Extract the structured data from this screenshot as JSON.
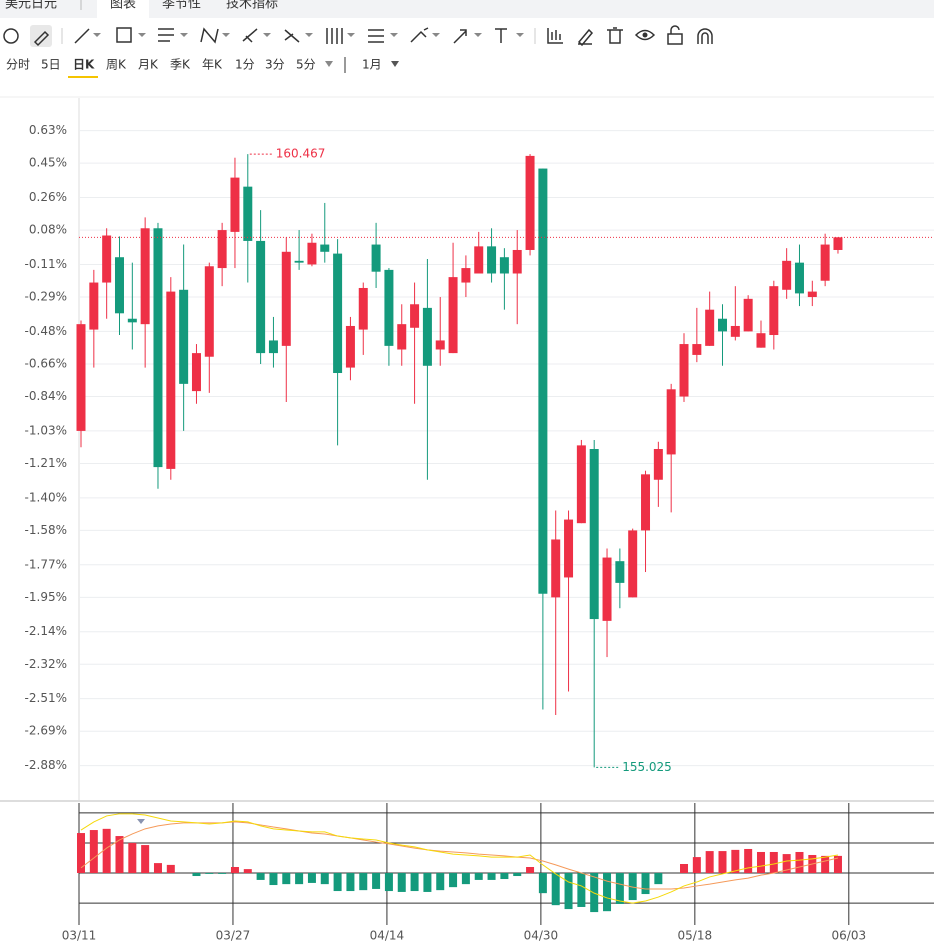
{
  "header": {
    "symbol": "美元日元",
    "tabs": [
      "图表",
      "季节性",
      "技术指标"
    ]
  },
  "periods": [
    "分时",
    "5日",
    "日K",
    "周K",
    "月K",
    "季K",
    "年K",
    "1分",
    "3分",
    "5分"
  ],
  "range": "1月",
  "chart_data": {
    "type": "candlestick",
    "categories": [
      "03/11",
      null,
      null,
      null,
      null,
      null,
      null,
      null,
      null,
      null,
      null,
      null,
      "03/27",
      null,
      null,
      null,
      null,
      null,
      null,
      null,
      null,
      null,
      null,
      null,
      "04/14",
      null,
      null,
      null,
      null,
      null,
      null,
      null,
      null,
      null,
      null,
      null,
      "04/30",
      null,
      null,
      null,
      null,
      null,
      null,
      null,
      null,
      null,
      null,
      null,
      "05/18",
      null,
      null,
      null,
      null,
      null,
      null,
      null,
      null,
      null,
      null,
      null,
      "06/03"
    ],
    "open": [
      -1.03,
      -0.47,
      -0.21,
      -0.07,
      -0.41,
      -0.44,
      0.09,
      -1.24,
      -0.25,
      -0.81,
      -0.62,
      -0.13,
      0.07,
      0.32,
      0.02,
      -0.53,
      -0.56,
      -0.09,
      -0.11,
      0.0,
      -0.05,
      -0.68,
      -0.47,
      0.0,
      -0.14,
      -0.58,
      -0.46,
      -0.35,
      -0.58,
      -0.6,
      -0.21,
      -0.16,
      -0.01,
      -0.07,
      -0.16,
      -0.03,
      0.42,
      -1.95,
      -1.84,
      -1.54,
      -1.13,
      -2.08,
      -1.75,
      -1.95,
      -1.58,
      -1.3,
      -1.16,
      -0.84,
      -0.61,
      -0.56,
      -0.41,
      -0.51,
      -0.48,
      -0.57,
      -0.5,
      -0.25,
      -0.1,
      -0.29,
      -0.2,
      -0.03,
      null
    ],
    "high": [
      -0.42,
      -0.14,
      0.09,
      0.045,
      -0.1,
      0.15,
      0.12,
      -0.18,
      0.0,
      -0.55,
      -0.1,
      0.12,
      0.48,
      0.5,
      0.19,
      -0.4,
      0.04,
      0.08,
      0.06,
      0.23,
      0.03,
      -0.4,
      -0.21,
      0.12,
      -0.13,
      -0.33,
      -0.21,
      -0.08,
      -0.29,
      0.01,
      -0.06,
      0.07,
      0.09,
      -0.02,
      0.08,
      0.5,
      0.42,
      -1.47,
      -1.47,
      -1.08,
      -1.08,
      -1.68,
      -1.68,
      -1.57,
      -1.25,
      -1.09,
      -0.77,
      -0.49,
      -0.35,
      -0.26,
      -0.33,
      -0.23,
      -0.28,
      -0.42,
      -0.2,
      -0.02,
      0.0,
      -0.2,
      0.06,
      0.04,
      null
    ],
    "low": [
      -1.12,
      -0.68,
      -0.41,
      -0.5,
      -0.58,
      -0.68,
      -1.35,
      -1.3,
      -1.03,
      -0.88,
      -0.82,
      -0.23,
      -0.13,
      -0.21,
      -0.66,
      -0.68,
      -0.87,
      -0.14,
      -0.12,
      -0.1,
      -1.11,
      -0.75,
      -0.61,
      -0.24,
      -0.67,
      -0.67,
      -0.88,
      -1.3,
      -0.67,
      -0.6,
      -0.29,
      -0.16,
      -0.21,
      -0.36,
      -0.44,
      -0.06,
      -2.57,
      -2.6,
      -2.47,
      -1.54,
      -2.89,
      -2.28,
      -2.01,
      -1.95,
      -1.81,
      -1.45,
      -1.48,
      -0.87,
      -0.65,
      -0.56,
      -0.67,
      -0.53,
      -0.48,
      -0.57,
      -0.58,
      -0.3,
      -0.34,
      -0.34,
      -0.23,
      -0.05,
      null
    ],
    "close": [
      -0.44,
      -0.21,
      0.05,
      -0.38,
      -0.43,
      0.09,
      -1.23,
      -0.26,
      -0.77,
      -0.6,
      -0.12,
      0.08,
      0.37,
      0.02,
      -0.6,
      -0.6,
      -0.04,
      -0.1,
      0.01,
      -0.04,
      -0.71,
      -0.45,
      -0.24,
      -0.15,
      -0.56,
      -0.44,
      -0.33,
      -0.67,
      -0.53,
      -0.18,
      -0.13,
      -0.01,
      -0.16,
      -0.16,
      -0.03,
      0.49,
      -1.93,
      -1.63,
      -1.52,
      -1.11,
      -2.07,
      -1.73,
      -1.87,
      -1.58,
      -1.27,
      -1.13,
      -0.8,
      -0.55,
      -0.55,
      -0.36,
      -0.48,
      -0.45,
      -0.3,
      -0.49,
      -0.23,
      -0.09,
      -0.27,
      -0.26,
      0.0,
      0.04,
      null
    ],
    "up_color": "#ee3046",
    "down_color": "#149a7c",
    "ylim": [
      -3.07,
      0.81
    ],
    "yticks": [
      {
        "value": 0.63,
        "label": "0.63%"
      },
      {
        "value": 0.45,
        "label": "0.45%"
      },
      {
        "value": 0.26,
        "label": "0.26%"
      },
      {
        "value": 0.08,
        "label": "0.08%"
      },
      {
        "value": -0.11,
        "label": "-0.11%"
      },
      {
        "value": -0.29,
        "label": "-0.29%"
      },
      {
        "value": -0.48,
        "label": "-0.48%"
      },
      {
        "value": -0.66,
        "label": "-0.66%"
      },
      {
        "value": -0.84,
        "label": "-0.84%"
      },
      {
        "value": -1.03,
        "label": "-1.03%"
      },
      {
        "value": -1.21,
        "label": "-1.21%"
      },
      {
        "value": -1.4,
        "label": "-1.40%"
      },
      {
        "value": -1.58,
        "label": "-1.58%"
      },
      {
        "value": -1.77,
        "label": "-1.77%"
      },
      {
        "value": -1.95,
        "label": "-1.95%"
      },
      {
        "value": -2.14,
        "label": "-2.14%"
      },
      {
        "value": -2.32,
        "label": "-2.32%"
      },
      {
        "value": -2.51,
        "label": "-2.51%"
      },
      {
        "value": -2.69,
        "label": "-2.69%"
      },
      {
        "value": -2.88,
        "label": "-2.88%"
      }
    ],
    "grid": true,
    "max_label": "160.467",
    "min_label": "155.025",
    "macd": {
      "ylim": [
        -1.73,
        2.33
      ],
      "grid": [
        2,
        1,
        0,
        -1
      ],
      "histogram": [
        1.33,
        1.43,
        1.47,
        1.23,
        1.0,
        0.93,
        0.33,
        0.27,
        0,
        -0.1,
        -0.03,
        -0.03,
        0.2,
        0.13,
        -0.23,
        -0.4,
        -0.37,
        -0.37,
        -0.33,
        -0.37,
        -0.6,
        -0.6,
        -0.57,
        -0.53,
        -0.6,
        -0.63,
        -0.6,
        -0.63,
        -0.57,
        -0.47,
        -0.37,
        -0.23,
        -0.23,
        -0.2,
        -0.1,
        0.2,
        -0.67,
        -1.07,
        -1.2,
        -1.13,
        -1.3,
        -1.27,
        -1.03,
        -0.9,
        -0.7,
        -0.37,
        0,
        0.3,
        0.53,
        0.73,
        0.73,
        0.77,
        0.8,
        0.7,
        0.7,
        0.63,
        0.7,
        0.6,
        0.57,
        0.57,
        null
      ],
      "dif": [
        1.43,
        1.7,
        1.9,
        1.97,
        1.97,
        1.93,
        1.83,
        1.73,
        1.7,
        1.67,
        1.63,
        1.67,
        1.73,
        1.7,
        1.57,
        1.47,
        1.43,
        1.4,
        1.37,
        1.37,
        1.23,
        1.17,
        1.13,
        1.1,
        1.0,
        0.93,
        0.87,
        0.77,
        0.7,
        0.63,
        0.6,
        0.57,
        0.53,
        0.53,
        0.53,
        0.6,
        0.27,
        -0.03,
        -0.3,
        -0.43,
        -0.67,
        -0.83,
        -0.93,
        -1.0,
        -0.93,
        -0.8,
        -0.63,
        -0.43,
        -0.3,
        -0.13,
        -0.03,
        0.07,
        0.17,
        0.23,
        0.3,
        0.4,
        0.43,
        0.47,
        0.53,
        0.6,
        null
      ],
      "dea": [
        0.17,
        0.5,
        0.83,
        1.1,
        1.3,
        1.47,
        1.57,
        1.63,
        1.67,
        1.67,
        1.67,
        1.67,
        1.7,
        1.67,
        1.6,
        1.53,
        1.47,
        1.4,
        1.33,
        1.3,
        1.23,
        1.17,
        1.1,
        1.03,
        0.97,
        0.9,
        0.83,
        0.77,
        0.73,
        0.7,
        0.67,
        0.63,
        0.6,
        0.57,
        0.53,
        0.5,
        0.4,
        0.27,
        0.13,
        0,
        -0.13,
        -0.27,
        -0.37,
        -0.47,
        -0.53,
        -0.53,
        -0.53,
        -0.5,
        -0.43,
        -0.37,
        -0.3,
        -0.23,
        -0.17,
        -0.07,
        0,
        0.1,
        0.2,
        0.3,
        0.4,
        0.5,
        null
      ],
      "dif_color": "#f5d90a",
      "dea_color": "#f59a5a"
    }
  }
}
